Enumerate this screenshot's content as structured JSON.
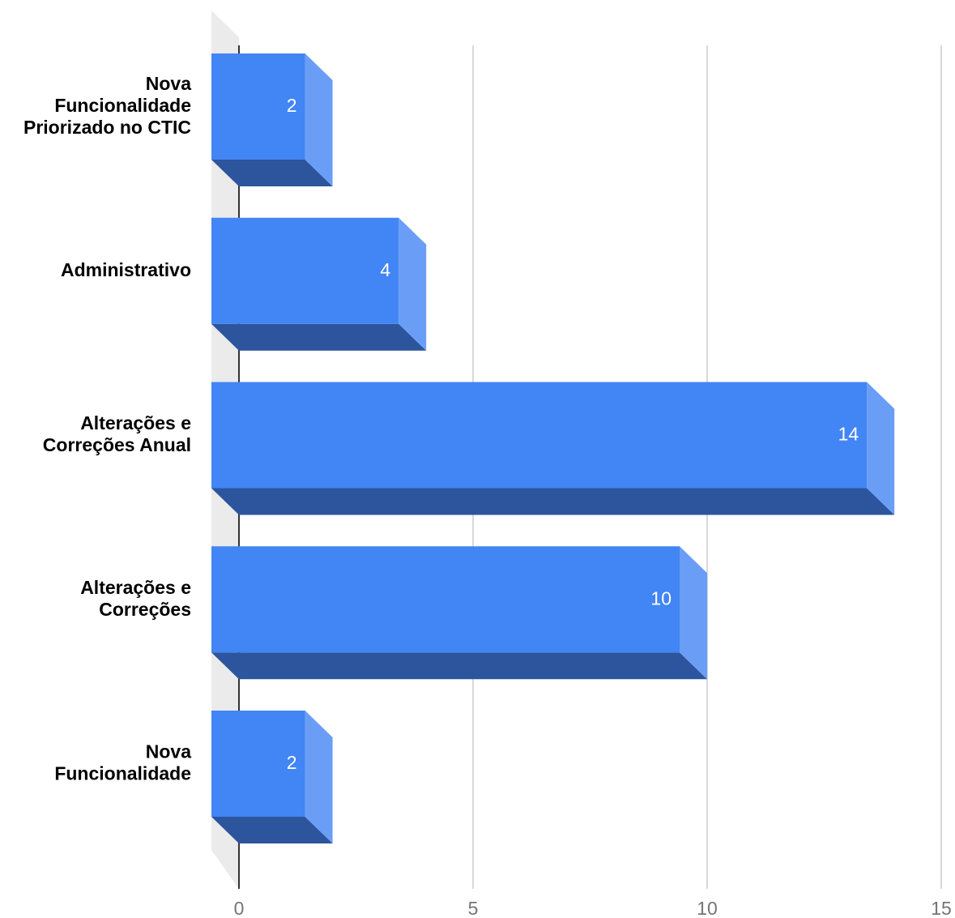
{
  "chart_data": {
    "type": "bar",
    "orientation": "horizontal",
    "three_d": true,
    "categories": [
      [
        "Nova",
        "Funcionalidade",
        "Priorizado no CTIC"
      ],
      [
        "Administrativo"
      ],
      [
        "Alterações e",
        "Correções Anual"
      ],
      [
        "Alterações e",
        "Correções"
      ],
      [
        "Nova",
        "Funcionalidade"
      ]
    ],
    "values": [
      2,
      4,
      14,
      10,
      2
    ],
    "data_labels": [
      "2",
      "4",
      "14",
      "10",
      "2"
    ],
    "x_ticks": [
      "0",
      "5",
      "10",
      "15"
    ],
    "x_tick_values": [
      0,
      5,
      10,
      15
    ],
    "xlim": [
      0,
      15
    ],
    "grid": true,
    "legend": "none",
    "title": "",
    "xlabel": "",
    "ylabel": "",
    "colors": {
      "front": "#4285f4",
      "side": "#6a9ef6",
      "bottom": "#2c559e",
      "wall": "#ebebeb",
      "grid": "#cccccc",
      "axis": "#333333"
    }
  }
}
